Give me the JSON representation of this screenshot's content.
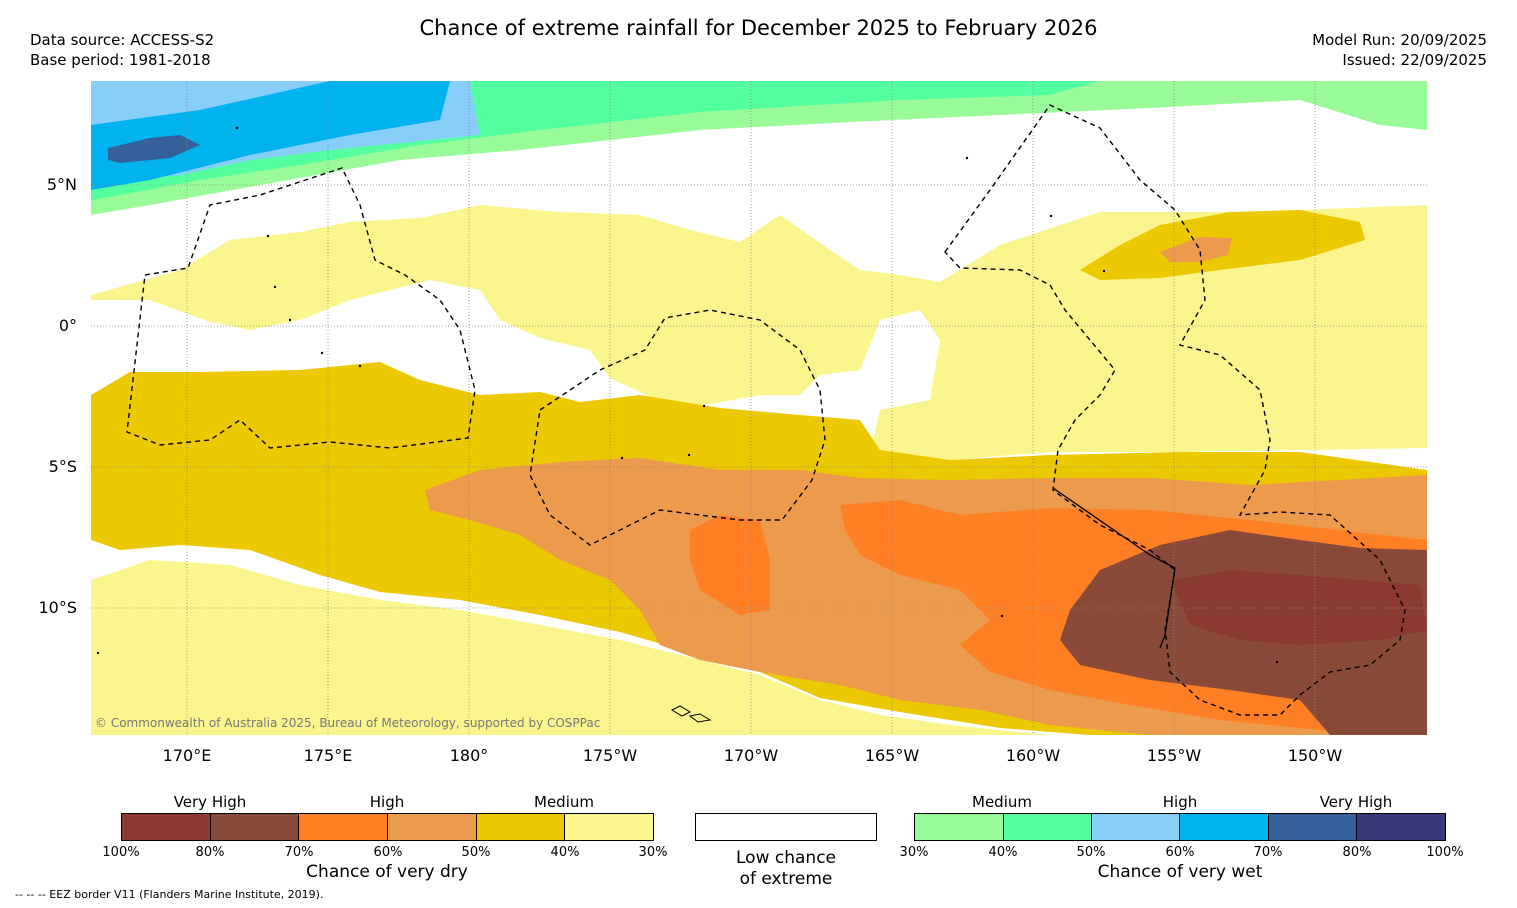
{
  "title": "Chance of extreme rainfall for December 2025 to February 2026",
  "meta": {
    "data_source": "Data source: ACCESS-S2",
    "base_period": "Base period: 1981-2018",
    "model_run": "Model Run: 20/09/2025",
    "issued": "Issued: 22/09/2025"
  },
  "map": {
    "lat_labels": [
      "5°N",
      "0°",
      "5°S",
      "10°S"
    ],
    "lon_labels": [
      "170°E",
      "175°E",
      "180°",
      "175°W",
      "170°W",
      "165°W",
      "160°W",
      "155°W",
      "150°W"
    ],
    "copyright": "© Commonwealth of Australia 2025, Bureau of Meteorology, supported by COSPPac"
  },
  "legend": {
    "dry": {
      "categories": [
        "Very High",
        "High",
        "Medium"
      ],
      "colors": [
        "#8b3a33",
        "#8a4a3a",
        "#ff7f24",
        "#eb9b4b",
        "#ecc800",
        "#fbf58e"
      ],
      "ticks": [
        "100%",
        "80%",
        "70%",
        "60%",
        "50%",
        "40%",
        "30%"
      ],
      "title": "Chance of very dry"
    },
    "low": {
      "line1": "Low chance",
      "line2": "of extreme"
    },
    "wet": {
      "categories": [
        "Medium",
        "High",
        "Very High"
      ],
      "colors": [
        "#98fb98",
        "#54ff9f",
        "#87cefa",
        "#00b2ee",
        "#36609a",
        "#3a3a7a"
      ],
      "ticks": [
        "30%",
        "40%",
        "50%",
        "60%",
        "70%",
        "80%",
        "100%"
      ],
      "title": "Chance of very wet"
    },
    "eez_note": "--  --  -- EEZ border V11 (Flanders Marine Institute, 2019)."
  }
}
